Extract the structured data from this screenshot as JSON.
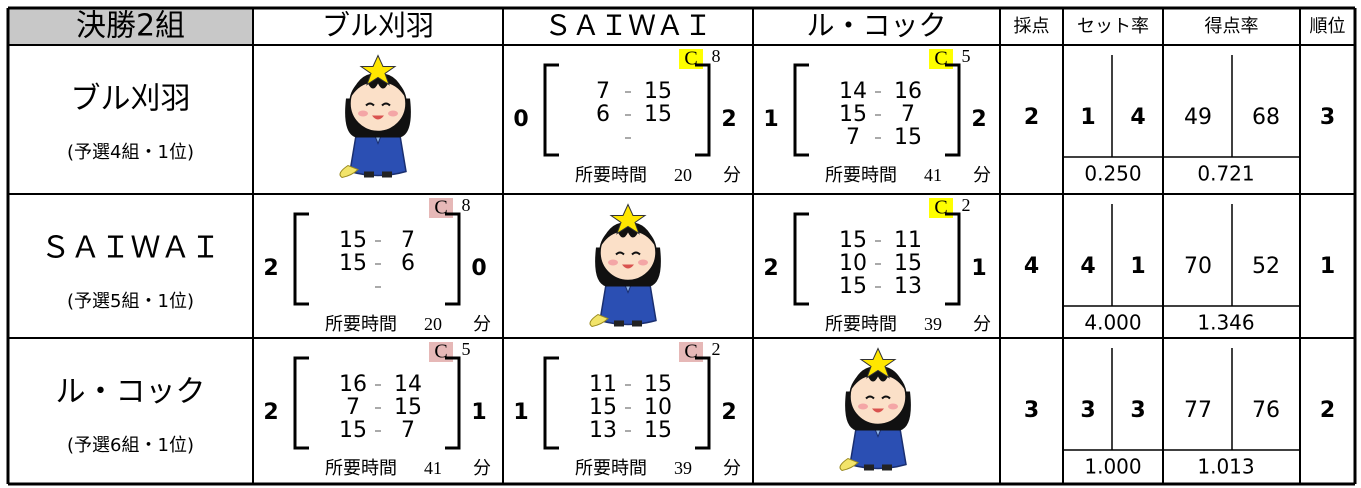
{
  "header": {
    "title": "決勝2組",
    "columns": [
      "ブル刈羽",
      "ＳＡＩＷＡＩ",
      "ル・コック",
      "採点",
      "セット率",
      "得点率",
      "順位"
    ]
  },
  "labels": {
    "time": "所要時間",
    "minutes_unit": "分"
  },
  "rows": [
    {
      "team": "ブル刈羽",
      "qualifier": "(予選4組・1位)",
      "matches": [
        null,
        {
          "court": "C",
          "court_no": 8,
          "court_color": "#ffff00",
          "sets_won": 0,
          "sets_lost": 2,
          "games": [
            [
              7,
              15
            ],
            [
              6,
              15
            ]
          ],
          "minutes": 20
        },
        {
          "court": "C",
          "court_no": 5,
          "court_color": "#ffff00",
          "sets_won": 1,
          "sets_lost": 2,
          "games": [
            [
              14,
              16
            ],
            [
              15,
              7
            ],
            [
              7,
              15
            ]
          ],
          "minutes": 41
        }
      ],
      "points": 2,
      "sets_won": 1,
      "sets_lost": 4,
      "set_rate": "0.250",
      "points_for": 49,
      "points_against": 68,
      "point_rate": "0.721",
      "rank": 3
    },
    {
      "team": "ＳＡＩＷＡＩ",
      "qualifier": "(予選5組・1位)",
      "matches": [
        {
          "court": "C",
          "court_no": 8,
          "court_color": "#e6b8b7",
          "sets_won": 2,
          "sets_lost": 0,
          "games": [
            [
              15,
              7
            ],
            [
              15,
              6
            ]
          ],
          "minutes": 20
        },
        null,
        {
          "court": "C",
          "court_no": 2,
          "court_color": "#ffff00",
          "sets_won": 2,
          "sets_lost": 1,
          "games": [
            [
              15,
              11
            ],
            [
              10,
              15
            ],
            [
              15,
              13
            ]
          ],
          "minutes": 39
        }
      ],
      "points": 4,
      "sets_won": 4,
      "sets_lost": 1,
      "set_rate": "4.000",
      "points_for": 70,
      "points_against": 52,
      "point_rate": "1.346",
      "rank": 1
    },
    {
      "team": "ル・コック",
      "qualifier": "(予選6組・1位)",
      "matches": [
        {
          "court": "C",
          "court_no": 5,
          "court_color": "#e6b8b7",
          "sets_won": 2,
          "sets_lost": 1,
          "games": [
            [
              16,
              14
            ],
            [
              7,
              15
            ],
            [
              15,
              7
            ]
          ],
          "minutes": 41
        },
        {
          "court": "C",
          "court_no": 2,
          "court_color": "#e6b8b7",
          "sets_won": 1,
          "sets_lost": 2,
          "games": [
            [
              11,
              15
            ],
            [
              15,
              10
            ],
            [
              13,
              15
            ]
          ],
          "minutes": 39
        },
        null
      ],
      "points": 3,
      "sets_won": 3,
      "sets_lost": 3,
      "set_rate": "1.000",
      "points_for": 77,
      "points_against": 76,
      "point_rate": "1.013",
      "rank": 2
    }
  ]
}
